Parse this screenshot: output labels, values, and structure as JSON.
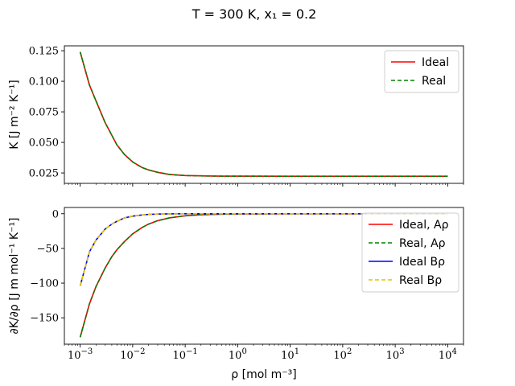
{
  "figure": {
    "title": "T = 300 K, x₁ = 0.2"
  },
  "chart_data": [
    {
      "type": "line",
      "xscale": "log",
      "xlim": [
        0.0005,
        20000
      ],
      "ylim": [
        0.0165,
        0.129
      ],
      "xlabel": "",
      "ylabel": "K [J m⁻² K⁻¹]",
      "yticks": [
        0.025,
        0.05,
        0.075,
        0.1,
        0.125
      ],
      "ytick_labels": [
        "0.025",
        "0.050",
        "0.075",
        "0.100",
        "0.125"
      ],
      "show_xtick_labels": false,
      "legend_position": "top-right",
      "x": [
        0.001,
        0.0015,
        0.002,
        0.003,
        0.005,
        0.007,
        0.01,
        0.015,
        0.02,
        0.03,
        0.05,
        0.1,
        0.2,
        0.5,
        1,
        10,
        100,
        1000,
        10000
      ],
      "series": [
        {
          "name": "Ideal",
          "color": "#ff0000",
          "dash": "solid",
          "values": [
            0.124,
            0.097,
            0.084,
            0.066,
            0.048,
            0.04,
            0.034,
            0.0295,
            0.0275,
            0.0255,
            0.0238,
            0.0229,
            0.0226,
            0.0224,
            0.0224,
            0.0223,
            0.0223,
            0.0223,
            0.0223
          ]
        },
        {
          "name": "Real",
          "color": "#008000",
          "dash": "dashed",
          "values": [
            0.124,
            0.097,
            0.084,
            0.066,
            0.048,
            0.04,
            0.034,
            0.0295,
            0.0275,
            0.0255,
            0.0238,
            0.0229,
            0.0226,
            0.0224,
            0.0224,
            0.0223,
            0.0223,
            0.0223,
            0.0223
          ]
        }
      ]
    },
    {
      "type": "line",
      "xscale": "log",
      "xlim": [
        0.0005,
        20000
      ],
      "ylim": [
        -188,
        9
      ],
      "xlabel": "ρ [mol m⁻³]",
      "ylabel": "∂K/∂ρ [J m mol⁻¹ K⁻¹]",
      "yticks": [
        -150,
        -100,
        -50,
        0
      ],
      "ytick_labels": [
        "−150",
        "−100",
        "−50",
        "0"
      ],
      "xticks": [
        0.001,
        0.01,
        0.1,
        1,
        10,
        100,
        1000,
        10000
      ],
      "xtick_labels": [
        {
          "base": "10",
          "exp": "−3"
        },
        {
          "base": "10",
          "exp": "−2"
        },
        {
          "base": "10",
          "exp": "−1"
        },
        {
          "base": "10",
          "exp": "0"
        },
        {
          "base": "10",
          "exp": "1"
        },
        {
          "base": "10",
          "exp": "2"
        },
        {
          "base": "10",
          "exp": "3"
        },
        {
          "base": "10",
          "exp": "4"
        }
      ],
      "legend_position": "right",
      "x": [
        0.001,
        0.0015,
        0.002,
        0.003,
        0.004,
        0.005,
        0.007,
        0.01,
        0.015,
        0.02,
        0.03,
        0.05,
        0.1,
        0.2,
        0.5,
        1,
        10,
        100,
        1000,
        10000
      ],
      "series": [
        {
          "name": "Ideal, Aρ",
          "color": "#ff0000",
          "dash": "solid",
          "values": [
            -178,
            -130,
            -105,
            -78,
            -62,
            -52,
            -40,
            -29,
            -20,
            -15,
            -10,
            -6,
            -3,
            -1.5,
            -0.6,
            -0.3,
            0,
            0,
            0,
            0
          ]
        },
        {
          "name": "Real, Aρ",
          "color": "#008000",
          "dash": "dashed",
          "values": [
            -178,
            -130,
            -105,
            -78,
            -62,
            -52,
            -40,
            -29,
            -20,
            -15,
            -10,
            -6,
            -3,
            -1.5,
            -0.6,
            -0.3,
            0,
            0,
            0,
            0
          ]
        },
        {
          "name": "Ideal Bρ",
          "color": "#0000ff",
          "dash": "solid",
          "values": [
            -104,
            -55,
            -38,
            -22,
            -15,
            -11,
            -6,
            -3.5,
            -1.8,
            -1.0,
            -0.5,
            -0.2,
            -0.05,
            0,
            0,
            0,
            0,
            0,
            0,
            0
          ]
        },
        {
          "name": "Real Bρ",
          "color": "#e6c000",
          "dash": "dashed",
          "values": [
            -104,
            -55,
            -38,
            -22,
            -15,
            -11,
            -6,
            -3.5,
            -1.8,
            -1.0,
            -0.5,
            -0.2,
            -0.05,
            0,
            0,
            0,
            0,
            0,
            0,
            0
          ]
        }
      ]
    }
  ]
}
